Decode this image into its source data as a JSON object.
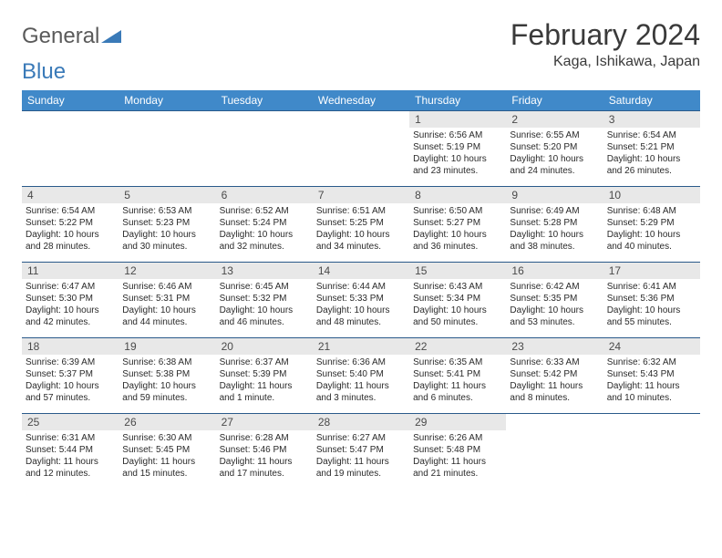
{
  "logo": {
    "text1": "General",
    "text2": "Blue",
    "color1": "#6a6a6a",
    "color2": "#3a7ab8"
  },
  "title": "February 2024",
  "location": "Kaga, Ishikawa, Japan",
  "header_bg": "#4089c9",
  "header_text": "#ffffff",
  "daynum_bg": "#e8e8e8",
  "border_color": "#2a5a8a",
  "day_names": [
    "Sunday",
    "Monday",
    "Tuesday",
    "Wednesday",
    "Thursday",
    "Friday",
    "Saturday"
  ],
  "weeks": [
    [
      null,
      null,
      null,
      null,
      {
        "n": "1",
        "sr": "6:56 AM",
        "ss": "5:19 PM",
        "dl": "10 hours and 23 minutes."
      },
      {
        "n": "2",
        "sr": "6:55 AM",
        "ss": "5:20 PM",
        "dl": "10 hours and 24 minutes."
      },
      {
        "n": "3",
        "sr": "6:54 AM",
        "ss": "5:21 PM",
        "dl": "10 hours and 26 minutes."
      }
    ],
    [
      {
        "n": "4",
        "sr": "6:54 AM",
        "ss": "5:22 PM",
        "dl": "10 hours and 28 minutes."
      },
      {
        "n": "5",
        "sr": "6:53 AM",
        "ss": "5:23 PM",
        "dl": "10 hours and 30 minutes."
      },
      {
        "n": "6",
        "sr": "6:52 AM",
        "ss": "5:24 PM",
        "dl": "10 hours and 32 minutes."
      },
      {
        "n": "7",
        "sr": "6:51 AM",
        "ss": "5:25 PM",
        "dl": "10 hours and 34 minutes."
      },
      {
        "n": "8",
        "sr": "6:50 AM",
        "ss": "5:27 PM",
        "dl": "10 hours and 36 minutes."
      },
      {
        "n": "9",
        "sr": "6:49 AM",
        "ss": "5:28 PM",
        "dl": "10 hours and 38 minutes."
      },
      {
        "n": "10",
        "sr": "6:48 AM",
        "ss": "5:29 PM",
        "dl": "10 hours and 40 minutes."
      }
    ],
    [
      {
        "n": "11",
        "sr": "6:47 AM",
        "ss": "5:30 PM",
        "dl": "10 hours and 42 minutes."
      },
      {
        "n": "12",
        "sr": "6:46 AM",
        "ss": "5:31 PM",
        "dl": "10 hours and 44 minutes."
      },
      {
        "n": "13",
        "sr": "6:45 AM",
        "ss": "5:32 PM",
        "dl": "10 hours and 46 minutes."
      },
      {
        "n": "14",
        "sr": "6:44 AM",
        "ss": "5:33 PM",
        "dl": "10 hours and 48 minutes."
      },
      {
        "n": "15",
        "sr": "6:43 AM",
        "ss": "5:34 PM",
        "dl": "10 hours and 50 minutes."
      },
      {
        "n": "16",
        "sr": "6:42 AM",
        "ss": "5:35 PM",
        "dl": "10 hours and 53 minutes."
      },
      {
        "n": "17",
        "sr": "6:41 AM",
        "ss": "5:36 PM",
        "dl": "10 hours and 55 minutes."
      }
    ],
    [
      {
        "n": "18",
        "sr": "6:39 AM",
        "ss": "5:37 PM",
        "dl": "10 hours and 57 minutes."
      },
      {
        "n": "19",
        "sr": "6:38 AM",
        "ss": "5:38 PM",
        "dl": "10 hours and 59 minutes."
      },
      {
        "n": "20",
        "sr": "6:37 AM",
        "ss": "5:39 PM",
        "dl": "11 hours and 1 minute."
      },
      {
        "n": "21",
        "sr": "6:36 AM",
        "ss": "5:40 PM",
        "dl": "11 hours and 3 minutes."
      },
      {
        "n": "22",
        "sr": "6:35 AM",
        "ss": "5:41 PM",
        "dl": "11 hours and 6 minutes."
      },
      {
        "n": "23",
        "sr": "6:33 AM",
        "ss": "5:42 PM",
        "dl": "11 hours and 8 minutes."
      },
      {
        "n": "24",
        "sr": "6:32 AM",
        "ss": "5:43 PM",
        "dl": "11 hours and 10 minutes."
      }
    ],
    [
      {
        "n": "25",
        "sr": "6:31 AM",
        "ss": "5:44 PM",
        "dl": "11 hours and 12 minutes."
      },
      {
        "n": "26",
        "sr": "6:30 AM",
        "ss": "5:45 PM",
        "dl": "11 hours and 15 minutes."
      },
      {
        "n": "27",
        "sr": "6:28 AM",
        "ss": "5:46 PM",
        "dl": "11 hours and 17 minutes."
      },
      {
        "n": "28",
        "sr": "6:27 AM",
        "ss": "5:47 PM",
        "dl": "11 hours and 19 minutes."
      },
      {
        "n": "29",
        "sr": "6:26 AM",
        "ss": "5:48 PM",
        "dl": "11 hours and 21 minutes."
      },
      null,
      null
    ]
  ],
  "labels": {
    "sunrise": "Sunrise:",
    "sunset": "Sunset:",
    "daylight": "Daylight:"
  }
}
